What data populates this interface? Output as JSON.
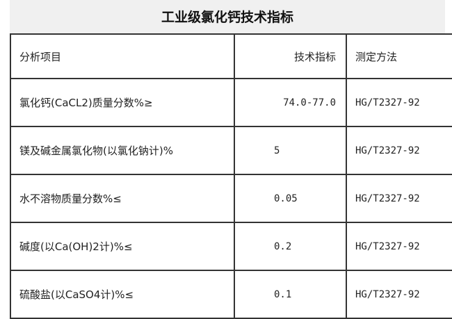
{
  "title": "工业级氯化钙技术指标",
  "headers": [
    "分析项目",
    "技术指标",
    "测定方法"
  ],
  "rows": [
    {
      "item": "氯化钙(CaCL2)质量分数%≥",
      "spec": "74.0-77.0",
      "method": "HG/T2327-92"
    },
    {
      "item": "镁及碱金属氯化物(以氯化钠计)%",
      "spec": "5",
      "method": "HG/T2327-92"
    },
    {
      "item": "水不溶物质量分数%≤",
      "spec": "0.05",
      "method": "HG/T2327-92"
    },
    {
      "item": "碱度(以Ca(OH)2计)%≤",
      "spec": "0.2",
      "method": "HG/T2327-92"
    },
    {
      "item": "硫酸盐(以CaSO4计)%≤",
      "spec": "0.1",
      "method": "HG/T2327-92"
    }
  ]
}
